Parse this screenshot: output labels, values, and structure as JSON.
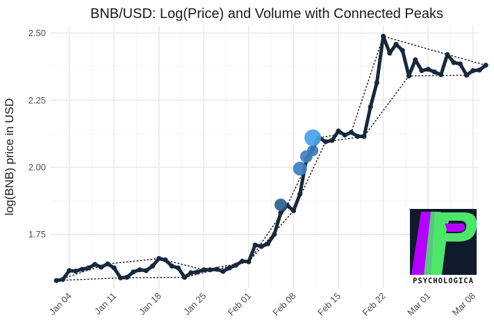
{
  "chart_data": {
    "type": "line",
    "title": "BNB/USD: Log(Price) and Volume with Connected Peaks",
    "xlabel": "",
    "ylabel": "log(BNB) price in USD",
    "ylim": [
      1.55,
      2.53
    ],
    "yticks": [
      1.75,
      2.0,
      2.25,
      2.5
    ],
    "ytick_labels": [
      "1.75",
      "2.00",
      "2.25",
      "2.50"
    ],
    "xlim": [
      "2021-01-01",
      "2021-03-09"
    ],
    "xticks": [
      "2021-01-04",
      "2021-01-11",
      "2021-01-18",
      "2021-01-25",
      "2021-02-01",
      "2021-02-08",
      "2021-02-15",
      "2021-02-22",
      "2021-03-01",
      "2021-03-08"
    ],
    "xtick_labels": [
      "Jan 04",
      "Jan 11",
      "Jan 18",
      "Jan 25",
      "Feb 01",
      "Feb 08",
      "Feb 15",
      "Feb 22",
      "Mar 01",
      "Mar 08"
    ],
    "grid": true,
    "series": [
      {
        "color": "#16283d",
        "points": [
          [
            "2021-01-02",
            1.578
          ],
          [
            "2021-01-03",
            1.582
          ],
          [
            "2021-01-04",
            1.615
          ],
          [
            "2021-01-05",
            1.613
          ],
          [
            "2021-01-06",
            1.62
          ],
          [
            "2021-01-07",
            1.625
          ],
          [
            "2021-01-08",
            1.638
          ],
          [
            "2021-01-09",
            1.628
          ],
          [
            "2021-01-10",
            1.64
          ],
          [
            "2021-01-11",
            1.625
          ],
          [
            "2021-01-12",
            1.588
          ],
          [
            "2021-01-13",
            1.59
          ],
          [
            "2021-01-14",
            1.61
          ],
          [
            "2021-01-15",
            1.618
          ],
          [
            "2021-01-16",
            1.615
          ],
          [
            "2021-01-17",
            1.632
          ],
          [
            "2021-01-18",
            1.66
          ],
          [
            "2021-01-19",
            1.655
          ],
          [
            "2021-01-20",
            1.632
          ],
          [
            "2021-01-21",
            1.625
          ],
          [
            "2021-01-22",
            1.59
          ],
          [
            "2021-01-23",
            1.607
          ],
          [
            "2021-01-24",
            1.61
          ],
          [
            "2021-01-25",
            1.618
          ],
          [
            "2021-01-26",
            1.618
          ],
          [
            "2021-01-27",
            1.62
          ],
          [
            "2021-01-28",
            1.612
          ],
          [
            "2021-01-29",
            1.625
          ],
          [
            "2021-01-30",
            1.635
          ],
          [
            "2021-01-31",
            1.65
          ],
          [
            "2021-02-01",
            1.648
          ],
          [
            "2021-02-02",
            1.71
          ],
          [
            "2021-02-03",
            1.705
          ],
          [
            "2021-02-04",
            1.715
          ],
          [
            "2021-02-05",
            1.75
          ],
          [
            "2021-02-06",
            1.83
          ],
          [
            "2021-02-07",
            1.858
          ],
          [
            "2021-02-08",
            1.838
          ],
          [
            "2021-02-09",
            1.9
          ],
          [
            "2021-02-10",
            2.03
          ],
          [
            "2021-02-11",
            2.07
          ],
          [
            "2021-02-12",
            2.11
          ],
          [
            "2021-02-13",
            2.095
          ],
          [
            "2021-02-14",
            2.1
          ],
          [
            "2021-02-15",
            2.135
          ],
          [
            "2021-02-16",
            2.12
          ],
          [
            "2021-02-17",
            2.13
          ],
          [
            "2021-02-18",
            2.115
          ],
          [
            "2021-02-19",
            2.115
          ],
          [
            "2021-02-20",
            2.225
          ],
          [
            "2021-02-21",
            2.315
          ],
          [
            "2021-02-22",
            2.488
          ],
          [
            "2021-02-23",
            2.425
          ],
          [
            "2021-02-24",
            2.458
          ],
          [
            "2021-02-25",
            2.435
          ],
          [
            "2021-02-26",
            2.34
          ],
          [
            "2021-02-27",
            2.4
          ],
          [
            "2021-02-28",
            2.36
          ],
          [
            "2021-03-01",
            2.365
          ],
          [
            "2021-03-02",
            2.355
          ],
          [
            "2021-03-03",
            2.345
          ],
          [
            "2021-03-04",
            2.42
          ],
          [
            "2021-03-05",
            2.39
          ],
          [
            "2021-03-06",
            2.385
          ],
          [
            "2021-03-07",
            2.343
          ],
          [
            "2021-03-08",
            2.36
          ],
          [
            "2021-03-09",
            2.362
          ],
          [
            "2021-03-10",
            2.38
          ]
        ]
      }
    ],
    "volume_markers": [
      {
        "x": "2021-02-06",
        "y": 1.86,
        "color": "#2e5f8f"
      },
      {
        "x": "2021-02-09",
        "y": 1.995,
        "color": "#3f7fbf"
      },
      {
        "x": "2021-02-10",
        "y": 2.04,
        "color": "#3f7fbf"
      },
      {
        "x": "2021-02-11",
        "y": 2.062,
        "color": "#3a7ab5"
      },
      {
        "x": "2021-02-11",
        "y": 2.11,
        "color": "#4aa0e8"
      }
    ],
    "peaks": [
      [
        "2021-01-02",
        1.578
      ],
      [
        "2021-01-10",
        1.64
      ],
      [
        "2021-01-18",
        1.66
      ],
      [
        "2021-01-25",
        1.618
      ],
      [
        "2021-02-01",
        1.648
      ],
      [
        "2021-02-07",
        1.858
      ],
      [
        "2021-02-12",
        2.11
      ],
      [
        "2021-02-17",
        2.13
      ],
      [
        "2021-02-22",
        2.488
      ],
      [
        "2021-03-04",
        2.42
      ],
      [
        "2021-03-10",
        2.38
      ]
    ],
    "troughs": [
      [
        "2021-01-02",
        1.578
      ],
      [
        "2021-01-12",
        1.588
      ],
      [
        "2021-01-22",
        1.59
      ],
      [
        "2021-02-01",
        1.648
      ],
      [
        "2021-02-08",
        1.838
      ],
      [
        "2021-02-13",
        2.095
      ],
      [
        "2021-02-19",
        2.115
      ],
      [
        "2021-02-26",
        2.34
      ],
      [
        "2021-03-07",
        2.343
      ],
      [
        "2021-03-10",
        2.38
      ]
    ]
  },
  "logo": {
    "text": "PSYCHOLOGICA",
    "colors": [
      "#0f1a2b",
      "#b300ff",
      "#4de66b"
    ]
  }
}
